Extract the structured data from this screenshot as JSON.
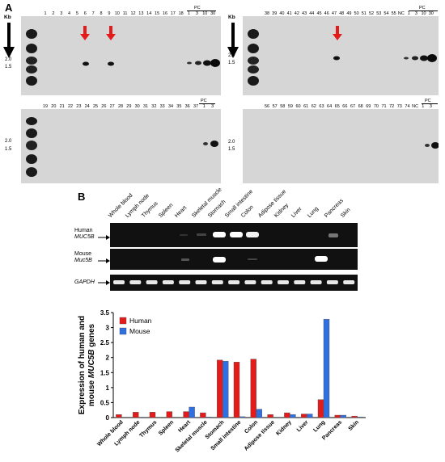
{
  "panel_a": {
    "label": "A",
    "kb_label": "Kb",
    "markers": [
      "2.0",
      "1.5"
    ],
    "pc_label": "PC",
    "nc_label": "NC",
    "blot_top_left": {
      "lanes": [
        "1",
        "2",
        "3",
        "4",
        "5",
        "6",
        "7",
        "8",
        "9",
        "10",
        "11",
        "12",
        "13",
        "14",
        "15",
        "16",
        "17",
        "18"
      ],
      "pc_lanes": [
        "1",
        "3",
        "10",
        "30"
      ]
    },
    "blot_bottom_left": {
      "lanes": [
        "19",
        "20",
        "21",
        "22",
        "23",
        "24",
        "25",
        "26",
        "27",
        "28",
        "29",
        "30",
        "31",
        "32",
        "33",
        "34",
        "35",
        "36",
        "37"
      ],
      "pc_lanes": [
        "1",
        "3"
      ]
    },
    "blot_top_right": {
      "lanes": [
        "38",
        "39",
        "40",
        "41",
        "42",
        "43",
        "44",
        "45",
        "46",
        "47",
        "48",
        "49",
        "50",
        "51",
        "52",
        "53",
        "54",
        "55"
      ],
      "pc_lanes": [
        "1",
        "3",
        "10",
        "30"
      ]
    },
    "blot_bottom_right": {
      "lanes": [
        "56",
        "57",
        "58",
        "59",
        "60",
        "61",
        "62",
        "63",
        "64",
        "65",
        "66",
        "67",
        "68",
        "69",
        "70",
        "71",
        "72",
        "73",
        "74"
      ],
      "pc_lanes": [
        "1",
        "3"
      ]
    },
    "colors": {
      "arrow": "#e31b1b",
      "blot": "#d6d6d6",
      "band": "#111111"
    }
  },
  "panel_b": {
    "label": "B",
    "tissues": [
      "Whole blood",
      "Lymph node",
      "Thymus",
      "Spleen",
      "Heart",
      "Skeletal muscle",
      "Stomach",
      "Small intestine",
      "Colon",
      "Adipose tissue",
      "Kidney",
      "Liver",
      "Lung",
      "Pancreas",
      "Skin"
    ],
    "gel_rows": {
      "human": {
        "line1": "Human",
        "line2": "MUC5B"
      },
      "mouse": {
        "line1": "Mouse",
        "line2": "Muc5B"
      },
      "gapdh": {
        "line1": "GAPDH"
      }
    }
  },
  "chart_data": {
    "type": "bar",
    "categories": [
      "Whole blood",
      "Lymph node",
      "Thymus",
      "Spleen",
      "Heart",
      "Skeletal muscle",
      "Stomach",
      "Small intestine",
      "Colon",
      "Adipose tissue",
      "Kidney",
      "Liver",
      "Lung",
      "Pancreas",
      "Skin"
    ],
    "series": [
      {
        "name": "Human",
        "color": "#e31b1b",
        "values": [
          0.1,
          0.18,
          0.18,
          0.2,
          0.2,
          0.16,
          1.92,
          1.85,
          1.95,
          0.1,
          0.16,
          0.12,
          0.6,
          0.08,
          0.05
        ]
      },
      {
        "name": "Mouse",
        "color": "#2f6fe0",
        "values": [
          0.0,
          0.0,
          0.0,
          0.0,
          0.35,
          0.02,
          1.88,
          0.03,
          0.28,
          0.0,
          0.1,
          0.12,
          3.28,
          0.08,
          0.02
        ]
      }
    ],
    "ylabel_line1": "Expression of human and",
    "ylabel_line2_prefix": "mouse ",
    "ylabel_line2_italic": "MUC5B",
    "ylabel_line2_suffix": " genes",
    "ylim": [
      0,
      3.5
    ],
    "yticks": [
      "0",
      "0.5",
      "1",
      "1.5",
      "2",
      "2.5",
      "3",
      "3.5"
    ],
    "legend_position": "top-left"
  }
}
